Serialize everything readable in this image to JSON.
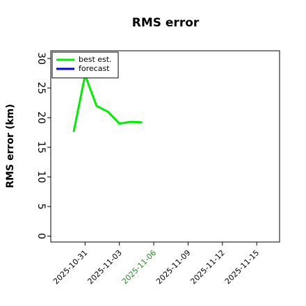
{
  "chart_data": {
    "type": "line",
    "title": "RMS error",
    "y_label": "RMS error (km)",
    "x": [
      "2025-10-30",
      "2025-10-31",
      "2025-11-01",
      "2025-11-02",
      "2025-11-03",
      "2025-11-04",
      "2025-11-05"
    ],
    "series": [
      {
        "name": "best est.",
        "color": "#00ee00",
        "values": [
          17.6,
          27.2,
          22,
          21,
          19,
          19.3,
          19.2
        ]
      },
      {
        "name": "forecast",
        "color": "#0000ff",
        "values": [
          null,
          null,
          null,
          null,
          null,
          null,
          null
        ]
      }
    ],
    "xlim": [
      "2025-10-28",
      "2025-11-17"
    ],
    "xticks": [
      "2025-10-31",
      "2025-11-03",
      "2025-11-06",
      "2025-11-09",
      "2025-11-12",
      "2025-11-15"
    ],
    "highlighted_xtick": "2025-11-06",
    "highlight_color": "#228b22",
    "ylim": [
      -1,
      31.3
    ],
    "yticks": [
      0,
      5,
      10,
      15,
      20,
      25,
      30
    ],
    "legend": "upper left"
  }
}
